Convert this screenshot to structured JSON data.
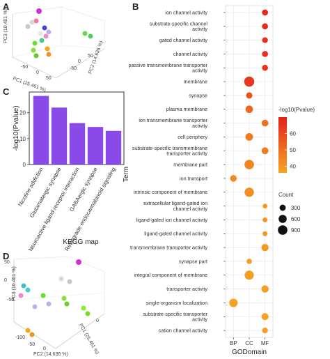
{
  "panels": {
    "a": "A",
    "b": "B",
    "c": "C",
    "d": "D"
  },
  "pca_a": {
    "axes": [
      "PC1 (25.461 %)",
      "PC2 (14.636 %)",
      "PC3 (10.401 %)"
    ],
    "ticks": [
      "-50",
      "0",
      "50",
      "100",
      "-100",
      "-50",
      "0",
      "50",
      "100"
    ]
  },
  "pca_d": {
    "axes": [
      "PC2 (14.636 %)",
      "PC1 (25.461 %)",
      "PC3 (10.401 %)"
    ],
    "ticks": [
      "-100",
      "-50",
      "0",
      "50",
      "100",
      "-100",
      "-50",
      "0",
      "50",
      "100",
      "-50",
      "0",
      "50",
      "100"
    ]
  },
  "colors": {
    "bar": "#8a4ae8",
    "dot_low": "#f5a623",
    "dot_high": "#e4201c",
    "grid": "#ebebeb",
    "panel_border": "#333333"
  },
  "chart_data": [
    {
      "type": "bar",
      "panel": "C",
      "categories": [
        "Nicotine addiction",
        "Glutamatergic synapse",
        "Neuroactive ligand-receptor interaction",
        "GABAergic synapse",
        "Retrograde endocannabinoid signaling"
      ],
      "values": [
        26.5,
        22,
        16,
        14.5,
        13
      ],
      "ylabel": "-log10(Pvalue)",
      "xlabel": "KEGG map",
      "ylim": [
        0,
        28
      ],
      "yticks": [
        0,
        10,
        20
      ],
      "grid": false
    },
    {
      "type": "scatter",
      "panel": "B",
      "xlabel": "GODomain",
      "ylabel": "Term",
      "categories": [
        "BP",
        "CC",
        "MF"
      ],
      "terms": [
        "ion channel activity",
        "substrate-specific channel activity",
        "gated channel activity",
        "channel activity",
        "passive transmembrane transporter activity",
        "membrane",
        "synapse",
        "plasma membrane",
        "ion transmembrane transporter activity",
        "cell periphery",
        "substrate-specific transmembrane transporter activity",
        "membrane part",
        "ion transport",
        "intrinsic component of membrane",
        "extracellular ligand-gated ion channel activity",
        "ligand-gated ion channel activity",
        "ligand-gated channel activity",
        "transmembrane transporter activity",
        "synapse part",
        "integral component of membrane",
        "transporter activity",
        "single-organism localization",
        "substrate-specific transporter activity",
        "cation channel activity"
      ],
      "points": [
        {
          "term": "ion channel activity",
          "domain": "MF",
          "count": 280,
          "logp": 68
        },
        {
          "term": "substrate-specific channel activity",
          "domain": "MF",
          "count": 280,
          "logp": 68
        },
        {
          "term": "gated channel activity",
          "domain": "MF",
          "count": 240,
          "logp": 66
        },
        {
          "term": "channel activity",
          "domain": "MF",
          "count": 280,
          "logp": 66
        },
        {
          "term": "passive transmembrane transporter activity",
          "domain": "MF",
          "count": 280,
          "logp": 65
        },
        {
          "term": "membrane",
          "domain": "CC",
          "count": 1050,
          "logp": 64
        },
        {
          "term": "synapse",
          "domain": "CC",
          "count": 320,
          "logp": 58
        },
        {
          "term": "plasma membrane",
          "domain": "CC",
          "count": 500,
          "logp": 52
        },
        {
          "term": "ion transmembrane transporter activity",
          "domain": "MF",
          "count": 380,
          "logp": 50
        },
        {
          "term": "cell periphery",
          "domain": "CC",
          "count": 520,
          "logp": 47
        },
        {
          "term": "substrate-specific transmembrane transporter activity",
          "domain": "MF",
          "count": 400,
          "logp": 47
        },
        {
          "term": "membrane part",
          "domain": "CC",
          "count": 900,
          "logp": 44
        },
        {
          "term": "ion transport",
          "domain": "BP",
          "count": 370,
          "logp": 43
        },
        {
          "term": "intrinsic component of membrane",
          "domain": "CC",
          "count": 850,
          "logp": 42
        },
        {
          "term": "extracellular ligand-gated ion channel activity",
          "domain": "MF",
          "count": 130,
          "logp": 40
        },
        {
          "term": "ligand-gated ion channel activity",
          "domain": "MF",
          "count": 150,
          "logp": 40
        },
        {
          "term": "ligand-gated channel activity",
          "domain": "MF",
          "count": 150,
          "logp": 40
        },
        {
          "term": "transmembrane transporter activity",
          "domain": "MF",
          "count": 450,
          "logp": 39
        },
        {
          "term": "synapse part",
          "domain": "CC",
          "count": 200,
          "logp": 38
        },
        {
          "term": "integral component of membrane",
          "domain": "CC",
          "count": 830,
          "logp": 38
        },
        {
          "term": "transporter activity",
          "domain": "MF",
          "count": 470,
          "logp": 38
        },
        {
          "term": "single-organism localization",
          "domain": "BP",
          "count": 680,
          "logp": 37
        },
        {
          "term": "substrate-specific transporter activity",
          "domain": "MF",
          "count": 420,
          "logp": 37
        },
        {
          "term": "cation channel activity",
          "domain": "MF",
          "count": 250,
          "logp": 37
        }
      ],
      "color_legend": {
        "title": "-log10(Pvalue)",
        "ticks": [
          40,
          50,
          60
        ],
        "range": [
          36,
          70
        ]
      },
      "size_legend": {
        "title": "Count",
        "values": [
          300,
          600,
          900
        ]
      },
      "grid": true,
      "legend_position": "right"
    }
  ]
}
